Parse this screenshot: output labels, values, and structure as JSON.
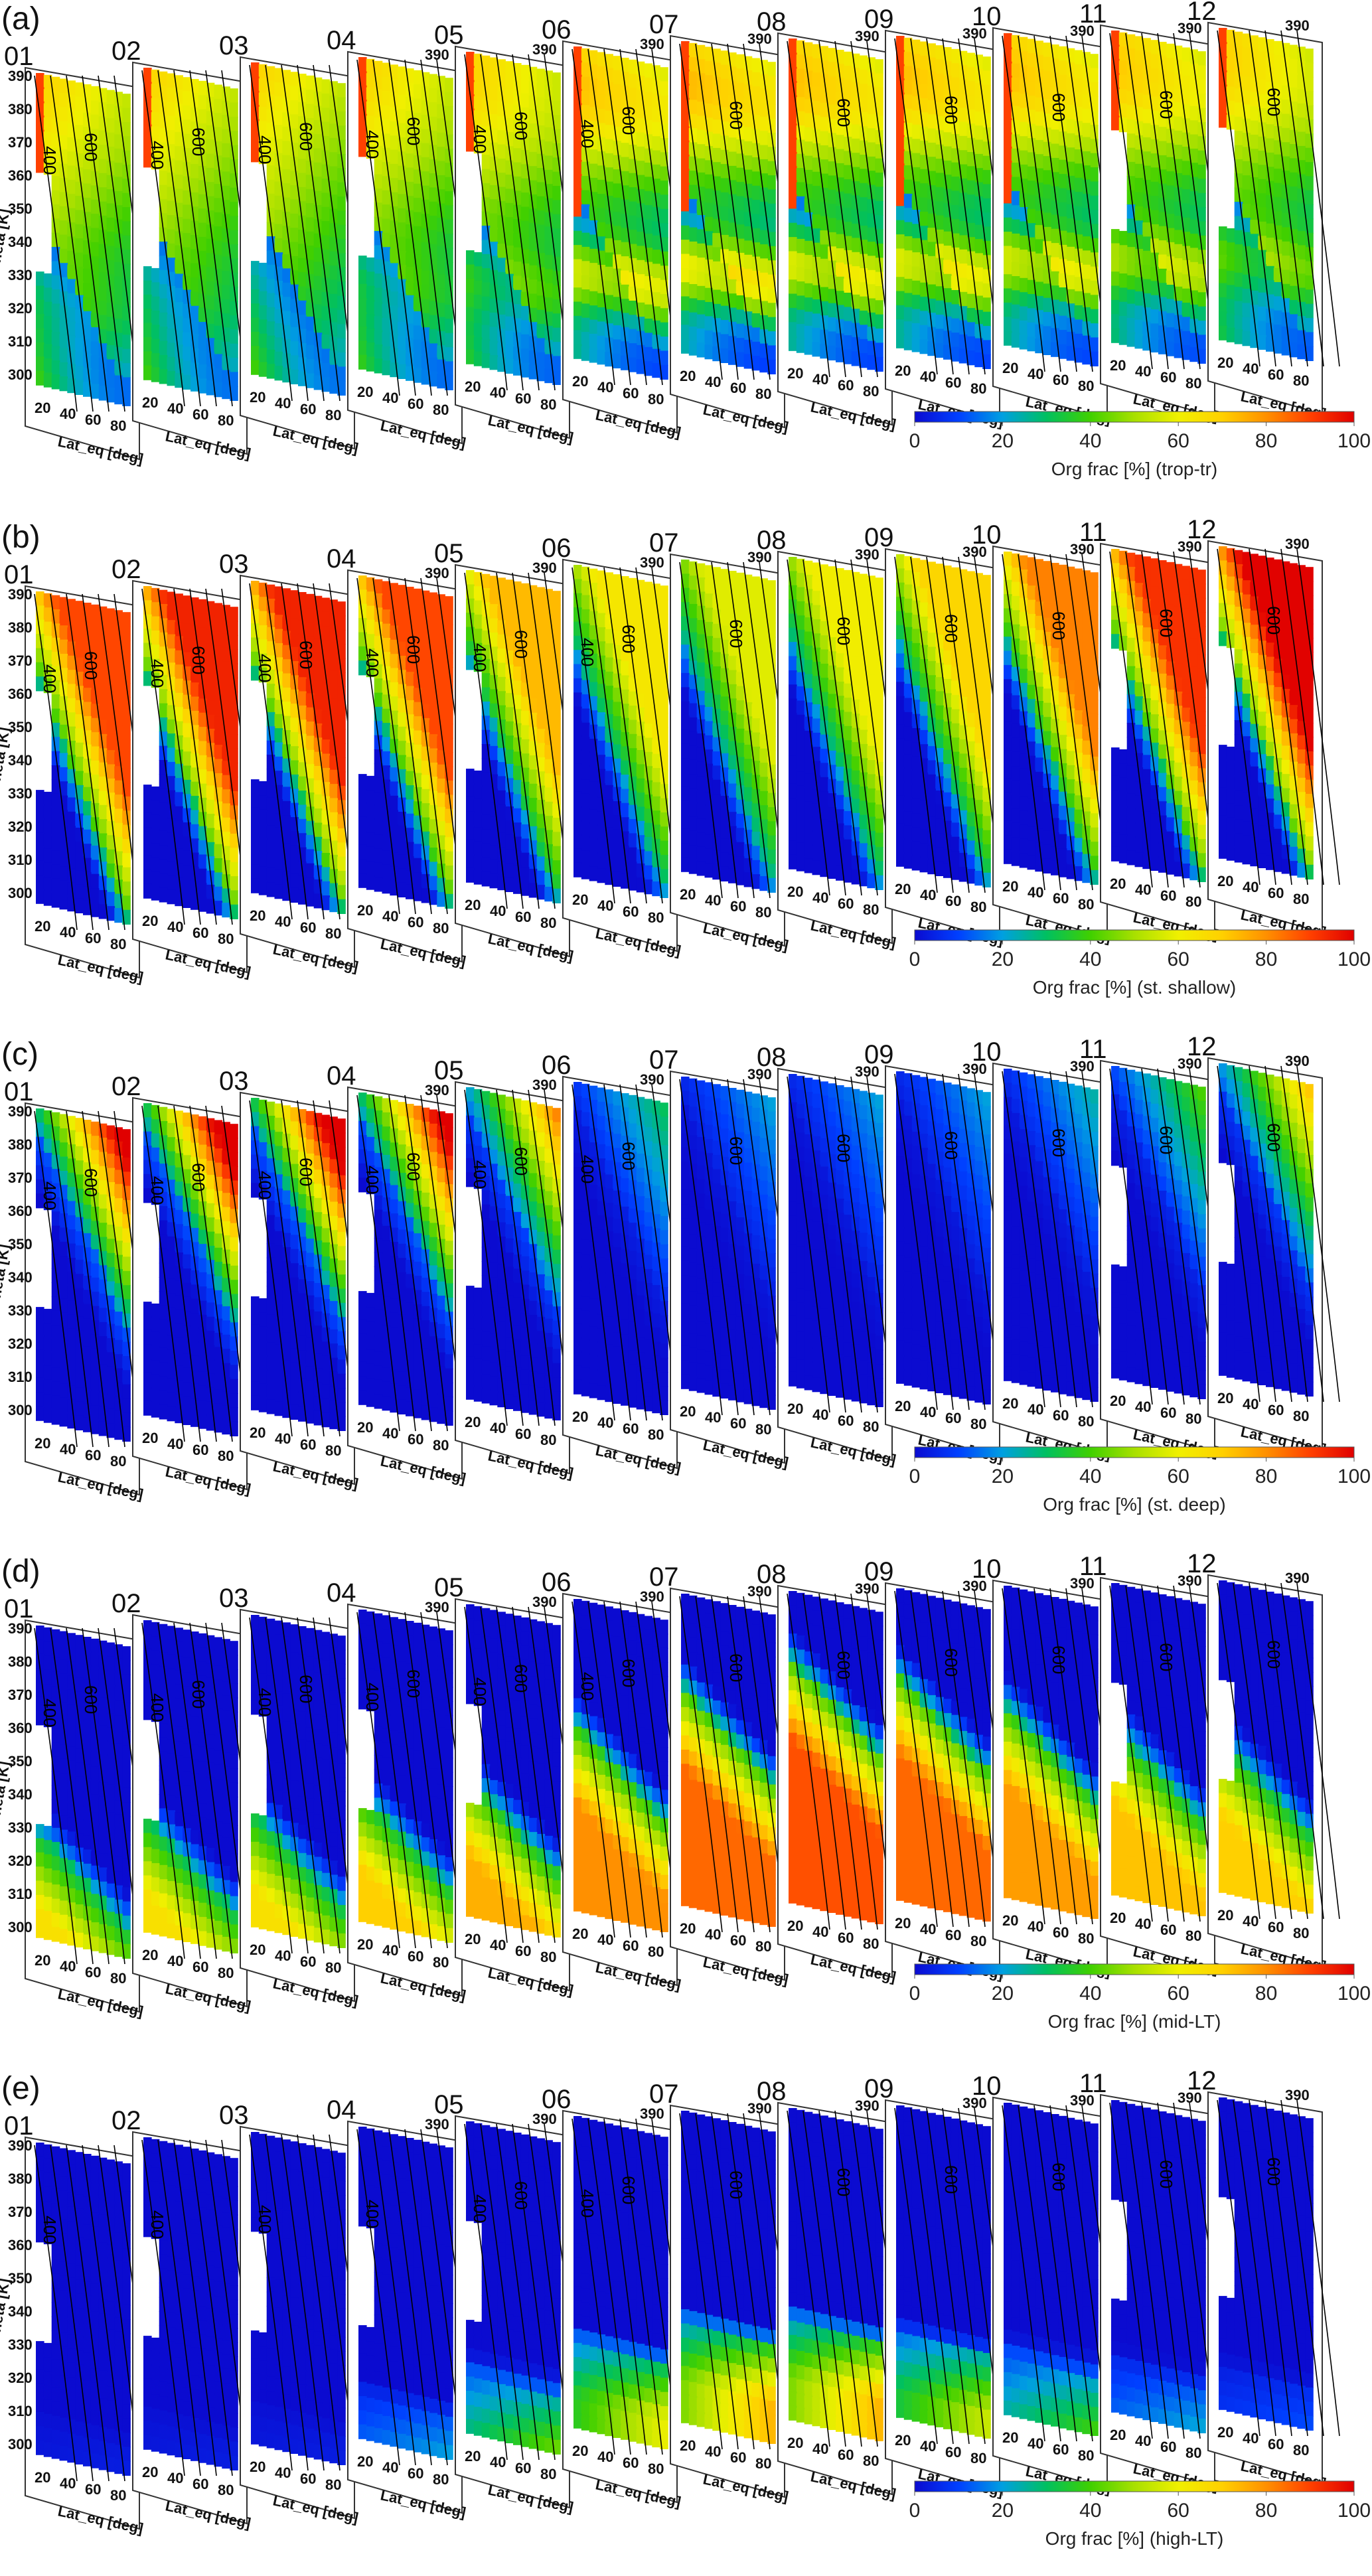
{
  "colorscale": {
    "stops": [
      "#0b0bd0",
      "#0040ff",
      "#00a0e0",
      "#00c060",
      "#40d000",
      "#a8e000",
      "#f0f000",
      "#ffd000",
      "#ff9000",
      "#ff4000",
      "#e00000"
    ],
    "ticks": [
      "0",
      "20",
      "40",
      "60",
      "80",
      "100"
    ]
  },
  "months": [
    "01",
    "02",
    "03",
    "04",
    "05",
    "06",
    "07",
    "08",
    "09",
    "10",
    "11",
    "12"
  ],
  "axes": {
    "y_ticks": [
      "390",
      "380",
      "370",
      "360",
      "350",
      "340",
      "330",
      "320",
      "310",
      "300"
    ],
    "x_ticks": [
      "20",
      "40",
      "60",
      "80"
    ],
    "ylabel": "Theta [K]",
    "xlabel": "Lat_eq [deg]",
    "contour_labels": [
      "400",
      "600"
    ],
    "inset_y_tick": "390"
  },
  "panels": [
    {
      "letter": "(a)",
      "colorbar_label": "Org frac [%] (trop-tr)"
    },
    {
      "letter": "(b)",
      "colorbar_label": "Org frac [%] (st. shallow)"
    },
    {
      "letter": "(c)",
      "colorbar_label": "Org frac [%] (st. deep)"
    },
    {
      "letter": "(d)",
      "colorbar_label": "Org frac [%] (mid-LT)"
    },
    {
      "letter": "(e)",
      "colorbar_label": "Org frac [%] (high-LT)"
    }
  ],
  "chart_data": [
    {
      "type": "heatmap",
      "title": "(a)",
      "colorbar_label": "Org frac [%] (trop-tr)",
      "z_range": [
        0,
        100
      ],
      "x_ticks": [
        20,
        40,
        60,
        80
      ],
      "y_ticks": [
        300,
        310,
        320,
        330,
        340,
        350,
        360,
        370,
        380,
        390
      ],
      "months": [
        "01",
        "02",
        "03",
        "04",
        "05",
        "06",
        "07",
        "08",
        "09",
        "10",
        "11",
        "12"
      ],
      "monthly_mean_level": [
        35,
        32,
        30,
        38,
        45,
        62,
        70,
        62,
        66,
        66,
        60,
        50
      ]
    },
    {
      "type": "heatmap",
      "title": "(b)",
      "colorbar_label": "Org frac [%] (st. shallow)",
      "z_range": [
        0,
        100
      ],
      "x_ticks": [
        20,
        40,
        60,
        80
      ],
      "y_ticks": [
        300,
        310,
        320,
        330,
        340,
        350,
        360,
        370,
        380,
        390
      ],
      "months": [
        "01",
        "02",
        "03",
        "04",
        "05",
        "06",
        "07",
        "08",
        "09",
        "10",
        "11",
        "12"
      ],
      "monthly_mean_level": [
        52,
        54,
        55,
        52,
        44,
        38,
        34,
        36,
        40,
        48,
        55,
        58
      ]
    },
    {
      "type": "heatmap",
      "title": "(c)",
      "colorbar_label": "Org frac [%] (st. deep)",
      "z_range": [
        0,
        100
      ],
      "x_ticks": [
        20,
        40,
        60,
        80
      ],
      "y_ticks": [
        300,
        310,
        320,
        330,
        340,
        350,
        360,
        370,
        380,
        390
      ],
      "months": [
        "01",
        "02",
        "03",
        "04",
        "05",
        "06",
        "07",
        "08",
        "09",
        "10",
        "11",
        "12"
      ],
      "monthly_mean_level": [
        18,
        22,
        22,
        20,
        14,
        6,
        4,
        4,
        4,
        5,
        8,
        14
      ]
    },
    {
      "type": "heatmap",
      "title": "(d)",
      "colorbar_label": "Org frac [%] (mid-LT)",
      "z_range": [
        0,
        100
      ],
      "x_ticks": [
        20,
        40,
        60,
        80
      ],
      "y_ticks": [
        300,
        310,
        320,
        330,
        340,
        350,
        360,
        370,
        380,
        390
      ],
      "months": [
        "01",
        "02",
        "03",
        "04",
        "05",
        "06",
        "07",
        "08",
        "09",
        "10",
        "11",
        "12"
      ],
      "monthly_mean_level": [
        14,
        16,
        16,
        20,
        24,
        32,
        38,
        40,
        36,
        30,
        24,
        20
      ]
    },
    {
      "type": "heatmap",
      "title": "(e)",
      "colorbar_label": "Org frac [%] (high-LT)",
      "z_range": [
        0,
        100
      ],
      "x_ticks": [
        20,
        40,
        60,
        80
      ],
      "y_ticks": [
        300,
        310,
        320,
        330,
        340,
        350,
        360,
        370,
        380,
        390
      ],
      "months": [
        "01",
        "02",
        "03",
        "04",
        "05",
        "06",
        "07",
        "08",
        "09",
        "10",
        "11",
        "12"
      ],
      "monthly_mean_level": [
        3,
        3,
        3,
        5,
        8,
        14,
        18,
        18,
        12,
        8,
        5,
        4
      ]
    }
  ]
}
